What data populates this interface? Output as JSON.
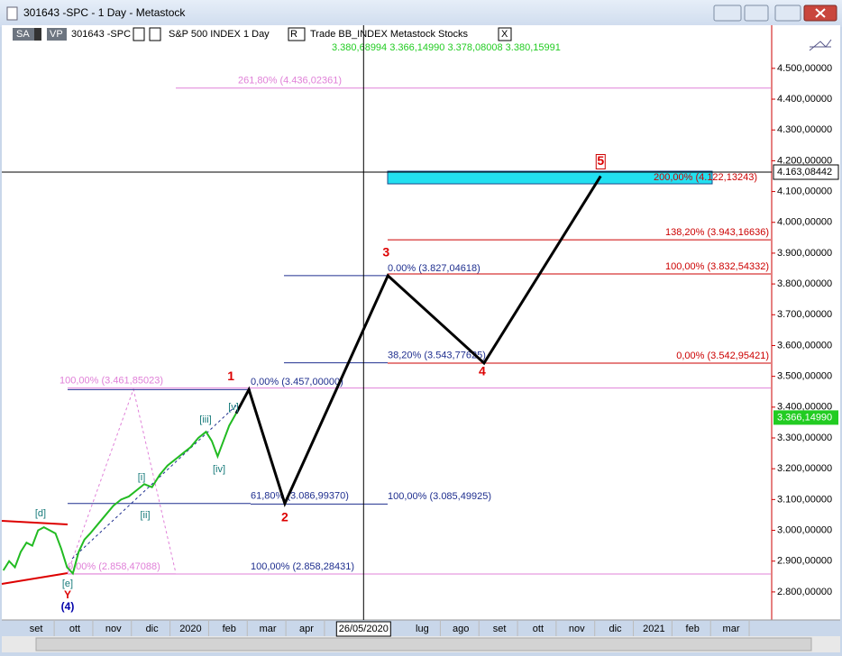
{
  "window": {
    "title": "301643 -SPC - 1 Day - Metastock"
  },
  "toolbar": {
    "sa": "SA",
    "vp": "VP",
    "symbol": "301643 -SPC",
    "name": "S&P 500 INDEX  1 Day",
    "r": "R",
    "info": "Trade  BB_INDEX  Metastock  Stocks",
    "close": "X"
  },
  "quotes": "3.380,68994  3.366,14990  3.378,08008  3.380,15991",
  "chart_data": {
    "type": "line",
    "xlim": [
      -0.89,
      19.05
    ],
    "ylim": [
      2709,
      4640
    ],
    "xticks": [
      {
        "value": 0,
        "label": "set"
      },
      {
        "value": 1,
        "label": "ott"
      },
      {
        "value": 2,
        "label": "nov"
      },
      {
        "value": 3,
        "label": "dic"
      },
      {
        "value": 4,
        "label": "2020"
      },
      {
        "value": 5,
        "label": "feb"
      },
      {
        "value": 6,
        "label": "mar"
      },
      {
        "value": 7,
        "label": "apr"
      },
      {
        "value": 10,
        "label": "lug"
      },
      {
        "value": 11,
        "label": "ago"
      },
      {
        "value": 12,
        "label": "set"
      },
      {
        "value": 13,
        "label": "ott"
      },
      {
        "value": 14,
        "label": "nov"
      },
      {
        "value": 15,
        "label": "dic"
      },
      {
        "value": 16,
        "label": "2021"
      },
      {
        "value": 17,
        "label": "feb"
      },
      {
        "value": 18,
        "label": "mar"
      }
    ],
    "yticks": [
      {
        "value": 2800,
        "label": "2.800,00000"
      },
      {
        "value": 2900,
        "label": "2.900,00000"
      },
      {
        "value": 3000,
        "label": "3.000,00000"
      },
      {
        "value": 3100,
        "label": "3.100,00000"
      },
      {
        "value": 3200,
        "label": "3.200,00000"
      },
      {
        "value": 3300,
        "label": "3.300,00000"
      },
      {
        "value": 3400,
        "label": "3.400,00000"
      },
      {
        "value": 3500,
        "label": "3.500,00000"
      },
      {
        "value": 3600,
        "label": "3.600,00000"
      },
      {
        "value": 3700,
        "label": "3.700,00000"
      },
      {
        "value": 3800,
        "label": "3.800,00000"
      },
      {
        "value": 3900,
        "label": "3.900,00000"
      },
      {
        "value": 4000,
        "label": "4.000,00000"
      },
      {
        "value": 4100,
        "label": "4.100,00000"
      },
      {
        "value": 4200,
        "label": "4.200,00000"
      },
      {
        "value": 4300,
        "label": "4.300,00000"
      },
      {
        "value": 4400,
        "label": "4.400,00000"
      },
      {
        "value": 4500,
        "label": "4.500,00000"
      }
    ],
    "price": {
      "color": "#22bb22",
      "x": [
        -0.85,
        -0.7,
        -0.55,
        -0.4,
        -0.25,
        -0.1,
        0.05,
        0.2,
        0.35,
        0.5,
        0.65,
        0.8,
        0.95,
        1.1,
        1.25,
        1.4,
        1.6,
        1.8,
        2.0,
        2.2,
        2.4,
        2.6,
        2.8,
        3.0,
        3.2,
        3.4,
        3.6,
        3.8,
        4.0,
        4.2,
        4.4,
        4.55,
        4.7,
        4.85,
        5.0,
        5.18
      ],
      "values": [
        2870,
        2900,
        2880,
        2930,
        2960,
        2950,
        3000,
        3010,
        3000,
        2990,
        2940,
        2880,
        2860,
        2930,
        2970,
        2990,
        3020,
        3050,
        3080,
        3100,
        3110,
        3130,
        3150,
        3140,
        3180,
        3210,
        3230,
        3250,
        3270,
        3300,
        3320,
        3290,
        3240,
        3290,
        3340,
        3380
      ]
    },
    "wave": {
      "color": "#000000",
      "x": [
        5.18,
        5.51,
        6.44,
        9.11,
        11.6,
        14.62
      ],
      "values": [
        3380,
        3457,
        3087,
        3827,
        3543,
        4150
      ],
      "labels": [
        null,
        "1",
        "2",
        "3",
        "4",
        "5"
      ],
      "label_color": "#dd0000"
    },
    "zone": {
      "color": "#22e0f0",
      "values": [
        4125,
        4166
      ]
    },
    "levels": [
      {
        "label": "261,80% (4.436,02361)",
        "value": 4436.02361,
        "color": "#e080d8"
      },
      {
        "label": "138,20% (3.943,16636)",
        "value": 3943.16636,
        "color": "#cc0000"
      },
      {
        "label": "100,00% (3.832,54332)",
        "value": 3832.54332,
        "color": "#cc0000"
      },
      {
        "label": "0.00% (3.827,04618)",
        "value": 3827.04618,
        "color": "#1f2f8f"
      },
      {
        "label": "38,20% (3.543,77625)",
        "value": 3543.77625,
        "color": "#1f2f8f"
      },
      {
        "label": "0,00% (3.542,95421)",
        "value": 3542.95421,
        "color": "#cc0000"
      },
      {
        "label": "100,00% (3.461,85023)",
        "value": 3461.85023,
        "color": "#e080d8"
      },
      {
        "label": "0,00% (3.457,00000)",
        "value": 3457.0,
        "color": "#1f2f8f"
      },
      {
        "label": "61,80% (3.086,99370)",
        "value": 3086.9937,
        "color": "#1f2f8f"
      },
      {
        "label": "100,00% (3.085,49925)",
        "value": 3085.49925,
        "color": "#1f2f8f"
      },
      {
        "label": "0,00% (2.858,47088)",
        "value": 2858.47088,
        "color": "#e080d8"
      },
      {
        "label": "100,00% (2.858,28431)",
        "value": 2858.28431,
        "color": "#1f2f8f"
      },
      {
        "label": "200,00% (4.122,13243)",
        "value": 4122.13243,
        "color": "#cc0000"
      }
    ],
    "annotations": [
      "[d]",
      "[e]",
      "Y",
      "(4)",
      "[i]",
      "[ii]",
      "[iii]",
      "[iv]",
      "[v]"
    ],
    "crosshair": {
      "x": {
        "value": 8.48,
        "label": "26/05/2020"
      },
      "y": {
        "value": 4163.08442,
        "label": "4.163,08442"
      }
    },
    "last": {
      "value": 3366.1499,
      "label": "3.366,14990",
      "color": "#22cc22"
    }
  }
}
